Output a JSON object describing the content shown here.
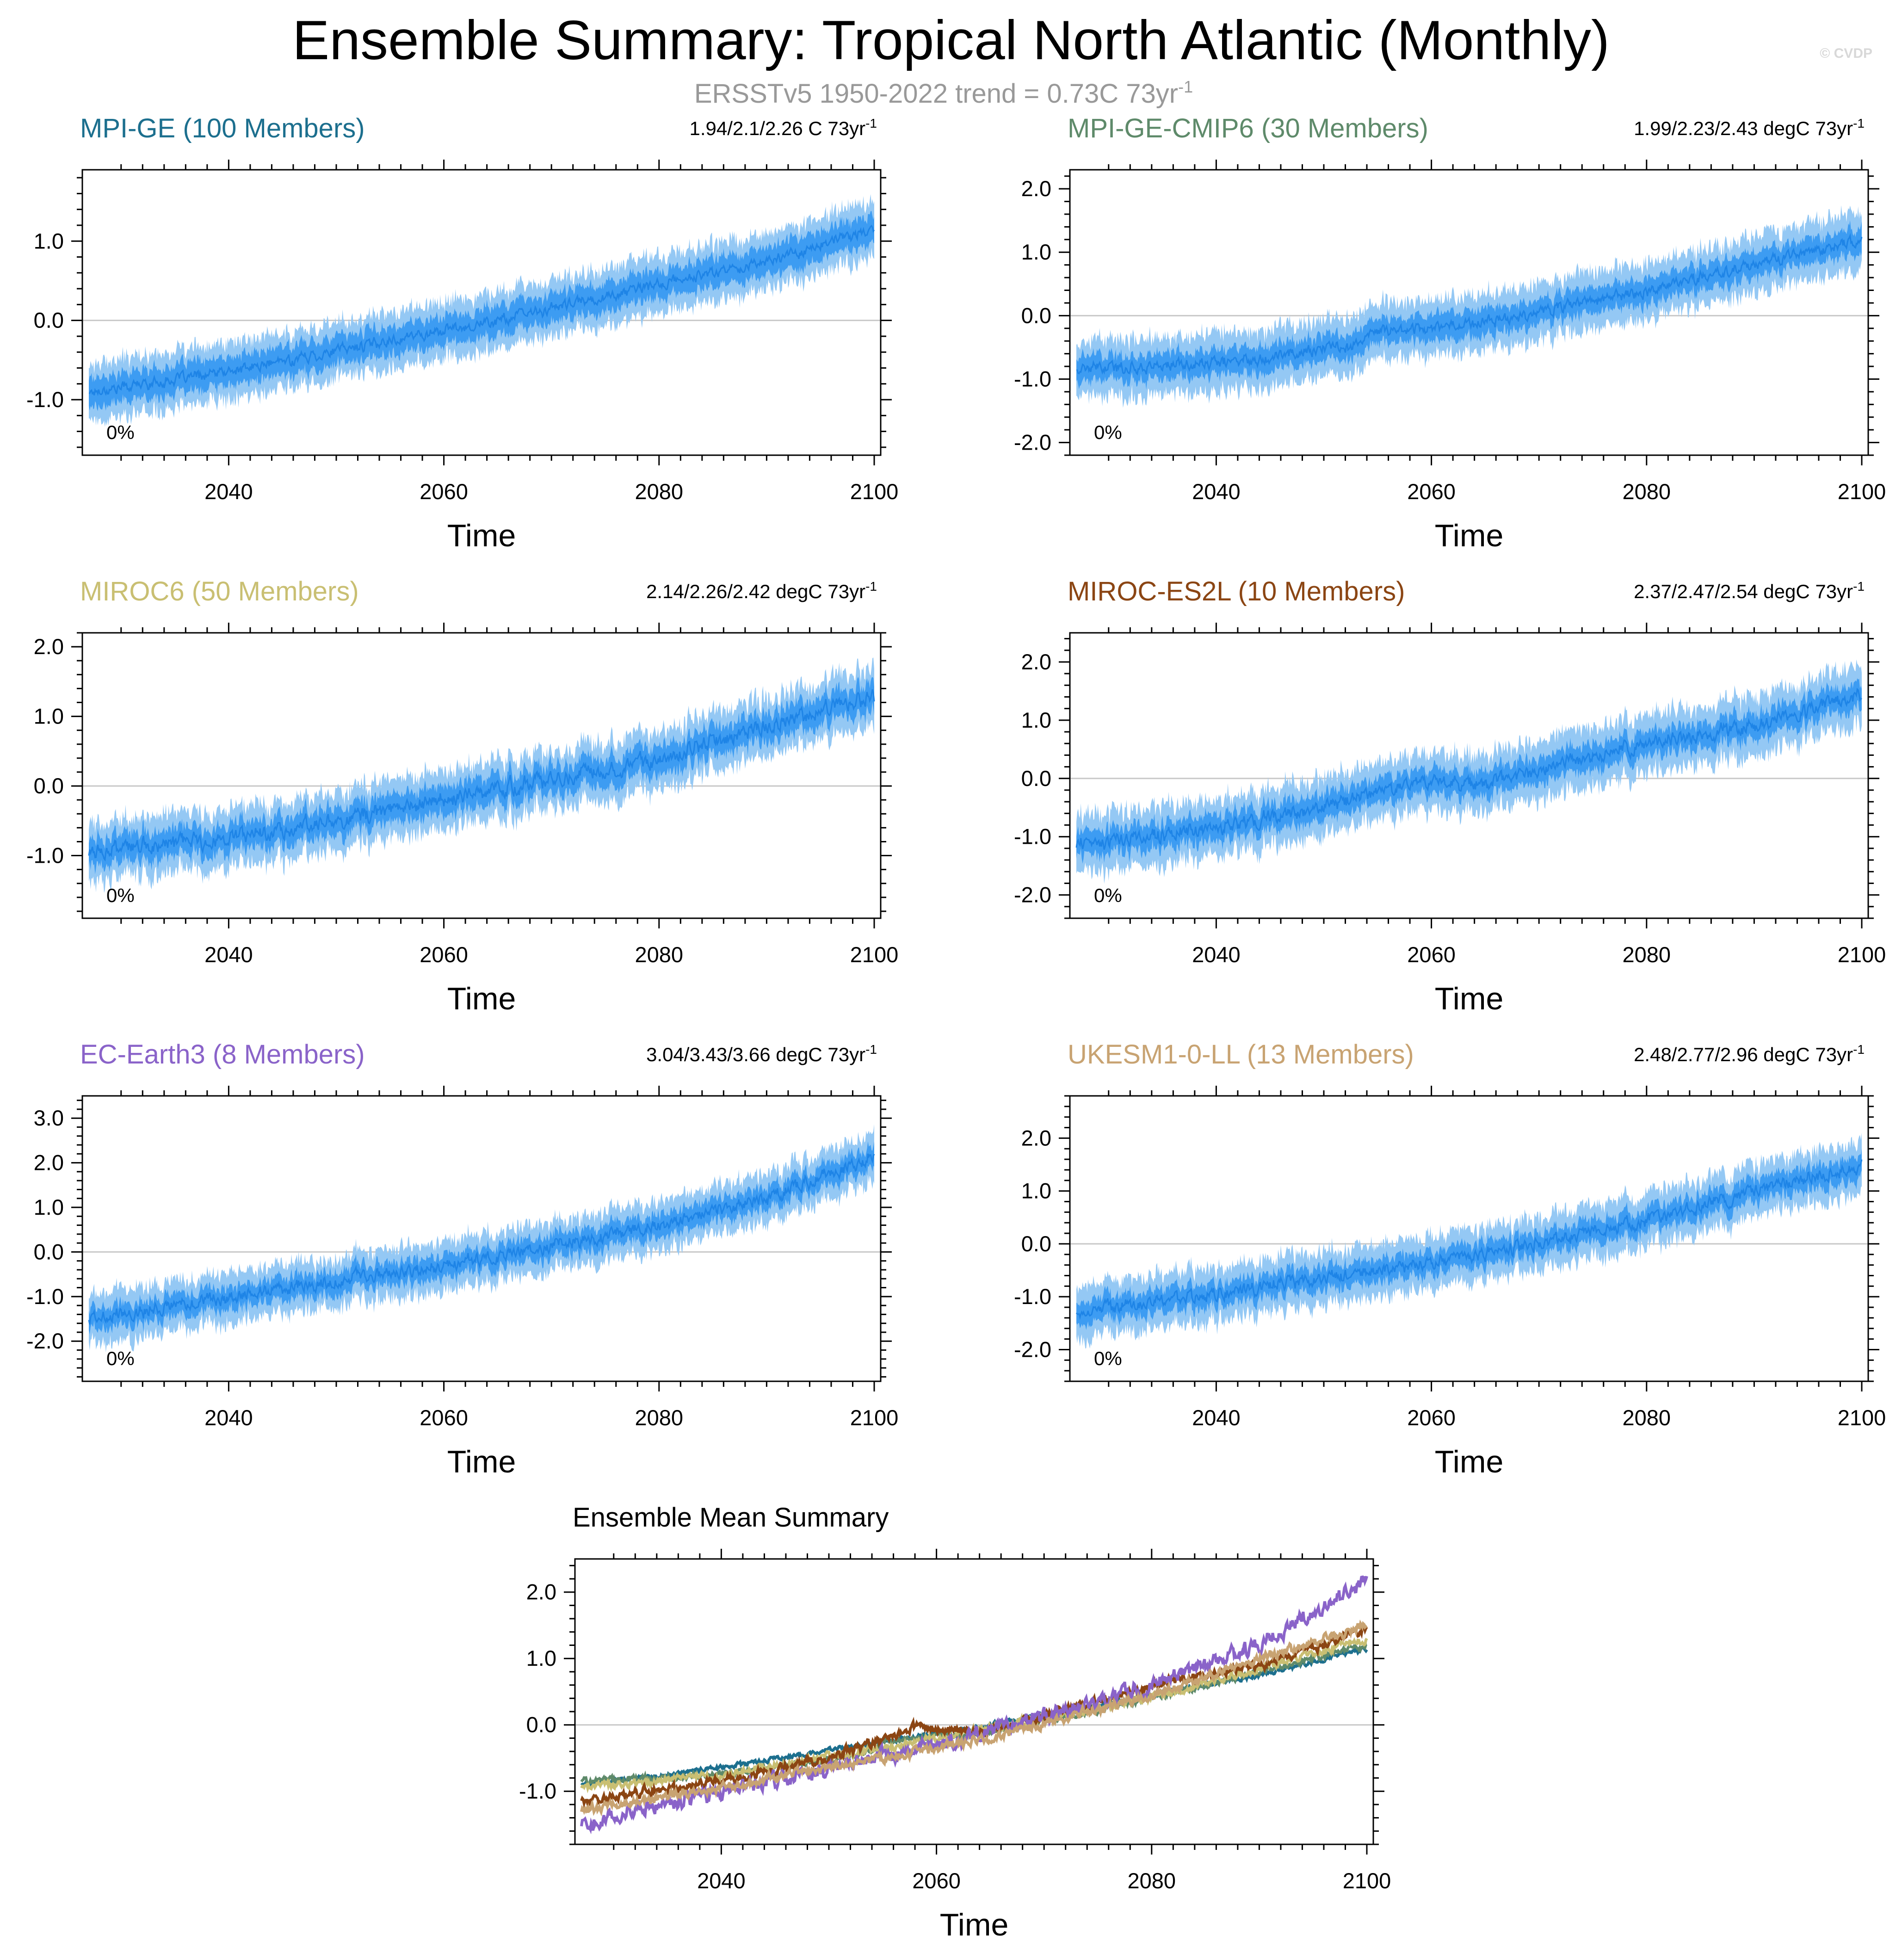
{
  "title": "Ensemble Summary: Tropical North Atlantic (Monthly)",
  "subtitle": "ERSSTv5 1950-2022 trend = 0.73C 73yr",
  "subtitle_sup": "-1",
  "credit": "© CVDP",
  "colors": {
    "band_outer": "#94c8f4",
    "band_inner": "#3d9cf2",
    "mean_line": "#1e84e6",
    "zero_line": "#c8c8c8",
    "frame": "#000000"
  },
  "chart_data": [
    {
      "type": "area",
      "title": "MPI-GE (100 Members)",
      "title_color": "#1c6f8e",
      "trend_label": "1.94/2.1/2.26 C 73yr",
      "trend_sup": "-1",
      "percent_label": "0%",
      "xlabel": "Time",
      "xlim": [
        2027,
        2100
      ],
      "ylim": [
        -1.7,
        1.9
      ],
      "xticks": [
        2040,
        2060,
        2080,
        2100
      ],
      "yticks": [
        -1.0,
        0.0,
        1.0
      ],
      "ytick_labels": [
        "-1.0",
        "0.0",
        "1.0"
      ],
      "series": [
        {
          "name": "ensemble mean",
          "x": [
            2027,
            2040,
            2055,
            2065,
            2080,
            2090,
            2100
          ],
          "values": [
            -0.9,
            -0.65,
            -0.25,
            0.0,
            0.45,
            0.75,
            1.15
          ]
        }
      ],
      "inner_halfwidth": 0.18,
      "outer_halfwidth": 0.36,
      "noise": 0.12
    },
    {
      "type": "area",
      "title": "MPI-GE-CMIP6 (30 Members)",
      "title_color": "#5e8a6a",
      "trend_label": "1.99/2.23/2.43 degC 73yr",
      "trend_sup": "-1",
      "percent_label": "0%",
      "xlabel": "Time",
      "xlim": [
        2027,
        2100
      ],
      "ylim": [
        -2.2,
        2.3
      ],
      "xticks": [
        2040,
        2060,
        2080,
        2100
      ],
      "yticks": [
        -2.0,
        -1.0,
        0.0,
        1.0,
        2.0
      ],
      "ytick_labels": [
        "-2.0",
        "-1.0",
        "0.0",
        "1.0",
        "2.0"
      ],
      "series": [
        {
          "name": "ensemble mean",
          "x": [
            2027,
            2040,
            2053,
            2055,
            2065,
            2080,
            2090,
            2100
          ],
          "values": [
            -0.85,
            -0.75,
            -0.45,
            -0.25,
            -0.1,
            0.4,
            0.8,
            1.2
          ]
        }
      ],
      "inner_halfwidth": 0.2,
      "outer_halfwidth": 0.45,
      "noise": 0.16
    },
    {
      "type": "area",
      "title": "MIROC6 (50 Members)",
      "title_color": "#c9bf72",
      "trend_label": "2.14/2.26/2.42 degC 73yr",
      "trend_sup": "-1",
      "percent_label": "0%",
      "xlabel": "Time",
      "xlim": [
        2027,
        2100
      ],
      "ylim": [
        -1.9,
        2.2
      ],
      "xticks": [
        2040,
        2060,
        2080,
        2100
      ],
      "yticks": [
        -1.0,
        0.0,
        1.0,
        2.0
      ],
      "ytick_labels": [
        "-1.0",
        "0.0",
        "1.0",
        "2.0"
      ],
      "series": [
        {
          "name": "ensemble mean",
          "x": [
            2027,
            2040,
            2055,
            2065,
            2080,
            2090,
            2100
          ],
          "values": [
            -0.95,
            -0.75,
            -0.35,
            -0.05,
            0.4,
            0.85,
            1.3
          ]
        }
      ],
      "inner_halfwidth": 0.2,
      "outer_halfwidth": 0.42,
      "noise": 0.2
    },
    {
      "type": "area",
      "title": "MIROC-ES2L (10 Members)",
      "title_color": "#8b4513",
      "trend_label": "2.37/2.47/2.54 degC 73yr",
      "trend_sup": "-1",
      "percent_label": "0%",
      "xlabel": "Time",
      "xlim": [
        2027,
        2100
      ],
      "ylim": [
        -2.4,
        2.5
      ],
      "xticks": [
        2040,
        2060,
        2080,
        2100
      ],
      "yticks": [
        -2.0,
        -1.0,
        0.0,
        1.0,
        2.0
      ],
      "ytick_labels": [
        "-2.0",
        "-1.0",
        "0.0",
        "1.0",
        "2.0"
      ],
      "series": [
        {
          "name": "ensemble mean",
          "x": [
            2027,
            2040,
            2050,
            2058,
            2065,
            2080,
            2090,
            2100
          ],
          "values": [
            -1.15,
            -0.85,
            -0.5,
            -0.05,
            -0.1,
            0.6,
            0.9,
            1.45
          ]
        }
      ],
      "inner_halfwidth": 0.22,
      "outer_halfwidth": 0.5,
      "noise": 0.22
    },
    {
      "type": "area",
      "title": "EC-Earth3 (8 Members)",
      "title_color": "#8a63c9",
      "trend_label": "3.04/3.43/3.66 degC 73yr",
      "trend_sup": "-1",
      "percent_label": "0%",
      "xlabel": "Time",
      "xlim": [
        2027,
        2100
      ],
      "ylim": [
        -2.9,
        3.5
      ],
      "xticks": [
        2040,
        2060,
        2080,
        2100
      ],
      "yticks": [
        -2.0,
        -1.0,
        0.0,
        1.0,
        2.0,
        3.0
      ],
      "ytick_labels": [
        "-2.0",
        "-1.0",
        "0.0",
        "1.0",
        "2.0",
        "3.0"
      ],
      "series": [
        {
          "name": "ensemble mean",
          "x": [
            2027,
            2040,
            2055,
            2065,
            2080,
            2090,
            2100
          ],
          "values": [
            -1.5,
            -1.0,
            -0.5,
            -0.1,
            0.6,
            1.2,
            2.2
          ]
        }
      ],
      "inner_halfwidth": 0.25,
      "outer_halfwidth": 0.55,
      "noise": 0.26
    },
    {
      "type": "area",
      "title": "UKESM1-0-LL (13 Members)",
      "title_color": "#c8a372",
      "trend_label": "2.48/2.77/2.96 degC 73yr",
      "trend_sup": "-1",
      "percent_label": "0%",
      "xlabel": "Time",
      "xlim": [
        2027,
        2100
      ],
      "ylim": [
        -2.6,
        2.8
      ],
      "xticks": [
        2040,
        2060,
        2080,
        2100
      ],
      "yticks": [
        -2.0,
        -1.0,
        0.0,
        1.0,
        2.0
      ],
      "ytick_labels": [
        "-2.0",
        "-1.0",
        "0.0",
        "1.0",
        "2.0"
      ],
      "series": [
        {
          "name": "ensemble mean",
          "x": [
            2027,
            2040,
            2055,
            2065,
            2080,
            2090,
            2100
          ],
          "values": [
            -1.3,
            -0.95,
            -0.5,
            -0.2,
            0.45,
            1.0,
            1.5
          ]
        }
      ],
      "inner_halfwidth": 0.22,
      "outer_halfwidth": 0.5,
      "noise": 0.22
    },
    {
      "type": "line",
      "title": "Ensemble Mean Summary",
      "xlabel": "Time",
      "xlim": [
        2027,
        2100
      ],
      "ylim": [
        -1.8,
        2.5
      ],
      "xticks": [
        2040,
        2060,
        2080,
        2100
      ],
      "yticks": [
        -1.0,
        0.0,
        1.0,
        2.0
      ],
      "ytick_labels": [
        "-1.0",
        "0.0",
        "1.0",
        "2.0"
      ],
      "series": [
        {
          "name": "MPI-GE",
          "color": "#1c6f8e",
          "noise": 0.06,
          "x": [
            2027,
            2040,
            2055,
            2065,
            2080,
            2090,
            2100
          ],
          "values": [
            -0.9,
            -0.65,
            -0.25,
            0.0,
            0.45,
            0.75,
            1.15
          ]
        },
        {
          "name": "MPI-GE-CMIP6",
          "color": "#5e8a6a",
          "noise": 0.08,
          "x": [
            2027,
            2040,
            2053,
            2055,
            2065,
            2080,
            2090,
            2100
          ],
          "values": [
            -0.85,
            -0.75,
            -0.45,
            -0.25,
            -0.1,
            0.4,
            0.8,
            1.2
          ]
        },
        {
          "name": "MIROC6",
          "color": "#c9bf72",
          "noise": 0.1,
          "x": [
            2027,
            2040,
            2055,
            2065,
            2080,
            2090,
            2100
          ],
          "values": [
            -0.95,
            -0.75,
            -0.35,
            -0.05,
            0.4,
            0.85,
            1.3
          ]
        },
        {
          "name": "MIROC-ES2L",
          "color": "#8b4513",
          "noise": 0.12,
          "x": [
            2027,
            2040,
            2050,
            2058,
            2065,
            2080,
            2090,
            2100
          ],
          "values": [
            -1.15,
            -0.85,
            -0.5,
            -0.05,
            -0.1,
            0.6,
            0.9,
            1.45
          ]
        },
        {
          "name": "EC-Earth3",
          "color": "#8a63c9",
          "noise": 0.2,
          "x": [
            2027,
            2040,
            2055,
            2065,
            2080,
            2090,
            2100
          ],
          "values": [
            -1.5,
            -1.0,
            -0.5,
            -0.1,
            0.6,
            1.2,
            2.2
          ]
        },
        {
          "name": "UKESM1-0-LL",
          "color": "#c8a372",
          "noise": 0.12,
          "x": [
            2027,
            2040,
            2055,
            2065,
            2080,
            2090,
            2100
          ],
          "values": [
            -1.3,
            -0.95,
            -0.5,
            -0.2,
            0.45,
            1.0,
            1.5
          ]
        }
      ]
    }
  ]
}
